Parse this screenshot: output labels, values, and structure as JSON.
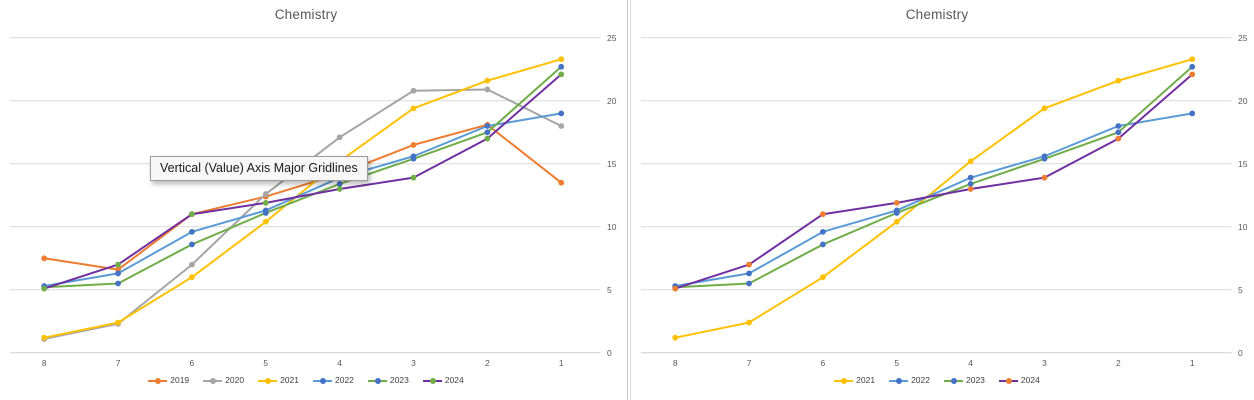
{
  "window": {
    "background": "#ffffff",
    "divider_color": "#c4c4c4",
    "gridline_color": "#d9d9d9",
    "axis_line_color": "#d0d0d0",
    "tick_label_color": "#595959",
    "title_color": "#595959",
    "legend_label_color": "#404040"
  },
  "tooltip": {
    "text": "Vertical (Value) Axis Major Gridlines"
  },
  "chart_data": [
    {
      "type": "line",
      "title": "Chemistry",
      "xlabel": "",
      "ylabel": "",
      "categories": [
        "8",
        "7",
        "6",
        "5",
        "4",
        "3",
        "2",
        "1"
      ],
      "y_ticks": [
        0,
        5,
        10,
        15,
        20,
        25
      ],
      "ylim": [
        0,
        25
      ],
      "grid": true,
      "y_axis_side": "right",
      "legend_position": "bottom",
      "series": [
        {
          "name": "2019",
          "color": "#ED7D31",
          "marker_color": "#ED7D31",
          "values": [
            7.5,
            6.6,
            11.0,
            12.4,
            14.2,
            16.5,
            18.1,
            13.5
          ]
        },
        {
          "name": "2020",
          "color": "#A5A5A5",
          "marker_color": "#A5A5A5",
          "values": [
            1.1,
            2.3,
            7.0,
            12.6,
            17.1,
            20.8,
            20.9,
            18.0
          ]
        },
        {
          "name": "2021",
          "color": "#FFC000",
          "marker_color": "#FFC000",
          "values": [
            1.2,
            2.4,
            6.0,
            10.4,
            15.2,
            19.4,
            21.6,
            23.3
          ]
        },
        {
          "name": "2022",
          "color": "#5B9BD5",
          "marker_color": "#4472C4",
          "values": [
            5.3,
            6.3,
            9.6,
            11.3,
            13.9,
            15.6,
            18.0,
            19.0
          ]
        },
        {
          "name": "2023",
          "color": "#70AD47",
          "marker_color": "#4472C4",
          "values": [
            5.2,
            5.5,
            8.6,
            11.1,
            13.4,
            15.4,
            17.5,
            22.7
          ]
        },
        {
          "name": "2024",
          "color": "#7030A0",
          "marker_color": "#70AD47",
          "values": [
            5.1,
            7.0,
            11.0,
            11.9,
            13.0,
            13.9,
            17.0,
            22.1
          ]
        }
      ]
    },
    {
      "type": "line",
      "title": "Chemistry",
      "xlabel": "",
      "ylabel": "",
      "categories": [
        "8",
        "7",
        "6",
        "5",
        "4",
        "3",
        "2",
        "1"
      ],
      "y_ticks": [
        0,
        5,
        10,
        15,
        20,
        25
      ],
      "ylim": [
        0,
        25
      ],
      "grid": true,
      "y_axis_side": "right",
      "legend_position": "bottom",
      "series": [
        {
          "name": "2021",
          "color": "#FFC000",
          "marker_color": "#FFC000",
          "values": [
            1.2,
            2.4,
            6.0,
            10.4,
            15.2,
            19.4,
            21.6,
            23.3
          ]
        },
        {
          "name": "2022",
          "color": "#5B9BD5",
          "marker_color": "#4472C4",
          "values": [
            5.3,
            6.3,
            9.6,
            11.3,
            13.9,
            15.6,
            18.0,
            19.0
          ]
        },
        {
          "name": "2023",
          "color": "#70AD47",
          "marker_color": "#4472C4",
          "values": [
            5.2,
            5.5,
            8.6,
            11.1,
            13.4,
            15.4,
            17.5,
            22.7
          ]
        },
        {
          "name": "2024",
          "color": "#7030A0",
          "marker_color": "#ED7D31",
          "values": [
            5.1,
            7.0,
            11.0,
            11.9,
            13.0,
            13.9,
            17.0,
            22.1
          ]
        }
      ]
    }
  ]
}
